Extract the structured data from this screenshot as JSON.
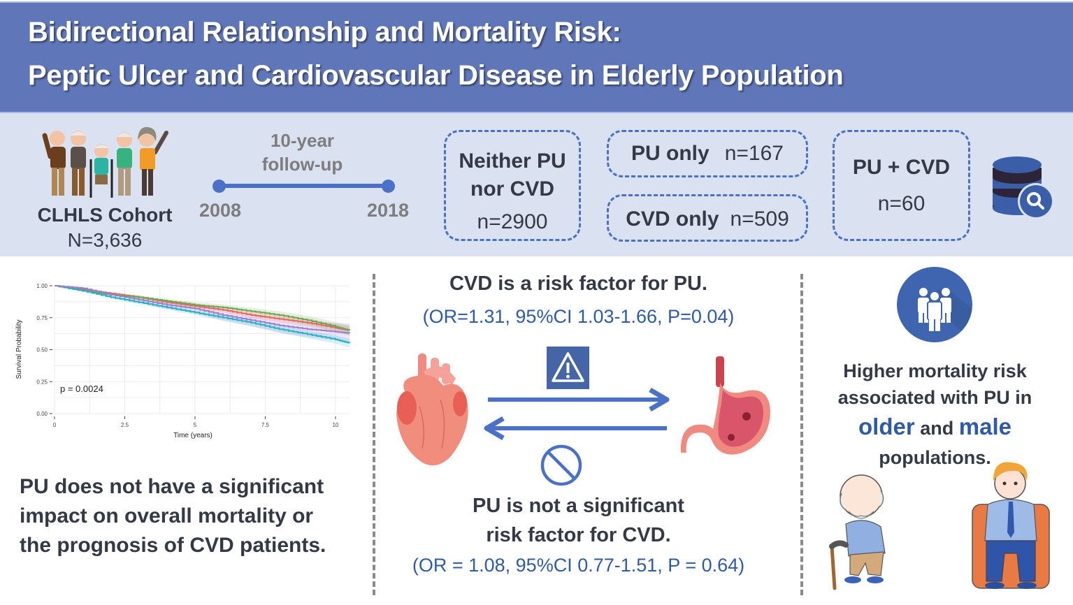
{
  "header": {
    "title_line1": "Bidirectional Relationship and Mortality Risk:",
    "title_line2": "Peptic Ulcer and Cardiovascular Disease in Elderly Population"
  },
  "cohort": {
    "name": "CLHLS Cohort",
    "total": "N=3,636",
    "illustration": "elderly-group-illustration"
  },
  "followup": {
    "label_line1": "10-year",
    "label_line2": "follow-up",
    "start_year": "2008",
    "end_year": "2018"
  },
  "groups": [
    {
      "label_line1": "Neither PU",
      "label_line2": "nor CVD",
      "count": "n=2900"
    },
    {
      "label": "PU only",
      "count": "n=167"
    },
    {
      "label": "CVD only",
      "count": "n=509"
    },
    {
      "label": "PU + CVD",
      "count": "n=60"
    }
  ],
  "icons": {
    "database": "database-search-icon",
    "warning": "warning-icon",
    "prohibited": "prohibited-icon",
    "people": "people-group-icon",
    "heart": "heart-illustration",
    "stomach": "stomach-ulcer-illustration"
  },
  "colors": {
    "header_bg": "#5f76b8",
    "band_bg": "#dae2f1",
    "accent_blue": "#4a70c7",
    "stat_blue": "#2f5aa8",
    "text_dark": "#343a45"
  },
  "chart_data": {
    "type": "line",
    "title": "",
    "xlabel": "Time (years)",
    "ylabel": "Survival Probability",
    "xlim": [
      0,
      10.5
    ],
    "ylim": [
      0,
      1
    ],
    "x_ticks": [
      "0",
      "2.5",
      "5",
      "7.5",
      "10"
    ],
    "y_ticks": [
      "0.00",
      "0.25",
      "0.50",
      "0.75",
      "1.00"
    ],
    "grid": true,
    "annotation": "p = 0.0024",
    "x": [
      0,
      1,
      2,
      3,
      4,
      5,
      6,
      7,
      8,
      9,
      10,
      10.5
    ],
    "series": [
      {
        "name": "red",
        "color": "#f0645a",
        "values": [
          1.0,
          0.97,
          0.94,
          0.91,
          0.87,
          0.84,
          0.81,
          0.77,
          0.74,
          0.71,
          0.67,
          0.65
        ]
      },
      {
        "name": "green",
        "color": "#6aa84f",
        "values": [
          1.0,
          0.96,
          0.93,
          0.91,
          0.88,
          0.85,
          0.83,
          0.8,
          0.77,
          0.73,
          0.68,
          0.65
        ]
      },
      {
        "name": "cyan",
        "color": "#1fb3c4",
        "values": [
          1.0,
          0.96,
          0.91,
          0.87,
          0.83,
          0.79,
          0.75,
          0.71,
          0.66,
          0.62,
          0.58,
          0.55
        ]
      },
      {
        "name": "purple",
        "color": "#9b7dd4",
        "values": [
          1.0,
          0.98,
          0.93,
          0.89,
          0.85,
          0.82,
          0.77,
          0.73,
          0.69,
          0.66,
          0.64,
          0.63
        ]
      }
    ]
  },
  "left_summary": {
    "line1": "PU does not have a significant",
    "line2": "impact on overall mortality or",
    "line3": "the prognosis of CVD patients."
  },
  "middle": {
    "finding1": "CVD is a risk factor for  PU.",
    "stat1": "(OR=1.31, 95%CI 1.03-1.66, P=0.04)",
    "finding2_line1": "PU is not a significant",
    "finding2_line2": "risk factor for  CVD.",
    "stat2": "(OR = 1.08, 95%CI 0.77-1.51, P = 0.64)"
  },
  "right": {
    "line1": "Higher mortality risk",
    "line2": "associated with PU in",
    "highlight1": "older",
    "connector": "and",
    "highlight2": "male",
    "line4": "populations."
  }
}
